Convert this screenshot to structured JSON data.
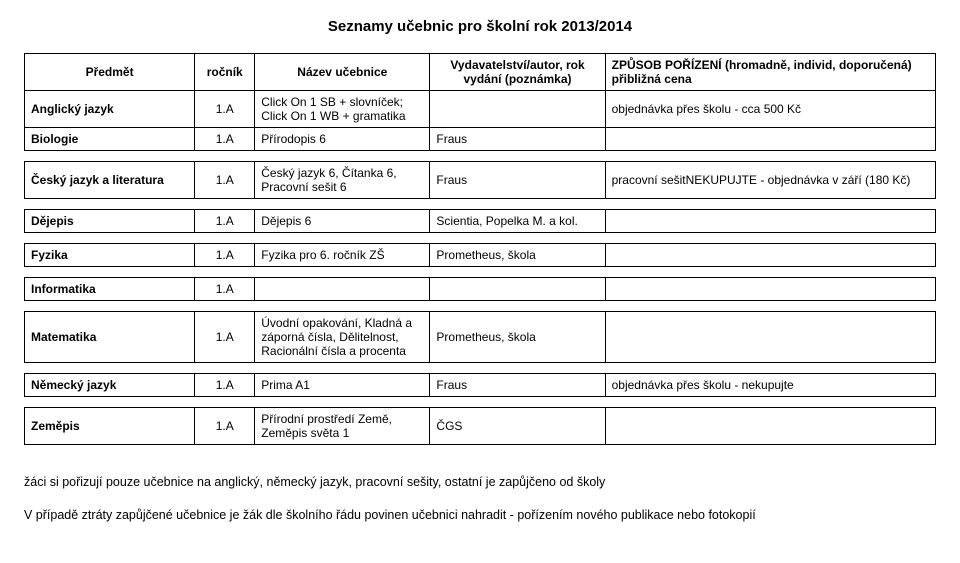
{
  "title": "Seznamy učebnic pro školní rok 2013/2014",
  "columns": {
    "subject": "Předmět",
    "grade": "ročník",
    "book": "Název učebnice",
    "publisher": "Vydavatelství/autor, rok vydání (poznámka)",
    "procurement": "ZPŮSOB POŘÍZENÍ (hromadně, individ, doporučená) přibližná cena"
  },
  "rows": [
    {
      "subject": "Anglický jazyk",
      "grade": "1.A",
      "book": "Click On 1 SB + slovníček; Click On 1 WB + gramatika",
      "publisher": "",
      "procurement": "objednávka přes školu - cca 500 Kč"
    },
    {
      "subject": "Biologie",
      "grade": "1.A",
      "book": "Přírodopis 6",
      "publisher": "Fraus",
      "procurement": ""
    },
    {
      "blank": true
    },
    {
      "subject": "Český jazyk a literatura",
      "grade": "1.A",
      "book": "Český jazyk 6, Čítanka 6, Pracovní sešit 6",
      "publisher": "Fraus",
      "procurement": "pracovní sešitNEKUPUJTE - objednávka v září  (180 Kč)"
    },
    {
      "blank": true
    },
    {
      "subject": "Dějepis",
      "grade": "1.A",
      "book": "Dějepis 6",
      "publisher": "Scientia, Popelka M. a kol.",
      "procurement": ""
    },
    {
      "blank": true
    },
    {
      "subject": "Fyzika",
      "grade": "1.A",
      "book": "Fyzika pro 6. ročník ZŠ",
      "publisher": "Prometheus, škola",
      "procurement": ""
    },
    {
      "blank": true
    },
    {
      "subject": "Informatika",
      "grade": "1.A",
      "book": "",
      "publisher": "",
      "procurement": ""
    },
    {
      "blank": true
    },
    {
      "subject": "Matematika",
      "grade": "1.A",
      "book": "Úvodní opakování, Kladná a záporná čísla, Dělitelnost, Racionální čísla a procenta",
      "publisher": "Prometheus, škola",
      "procurement": ""
    },
    {
      "blank": true
    },
    {
      "subject": "Německý jazyk",
      "grade": "1.A",
      "book": "Prima A1",
      "publisher": "Fraus",
      "procurement": "objednávka přes školu  - nekupujte"
    },
    {
      "blank": true
    },
    {
      "subject": "Zeměpis",
      "grade": "1.A",
      "book": "Přírodní prostředí Země, Zeměpis světa 1",
      "publisher": "ČGS",
      "procurement": ""
    }
  ],
  "footnote": {
    "line1": "žáci si pořizují pouze učebnice na anglický, německý jazyk, pracovní sešity, ostatní je zapůjčeno od školy",
    "line2": "V případě ztráty zapůjčené učebnice je žák dle školního řádu povinen učebnici nahradit - pořízením nového publikace nebo fotokopií"
  }
}
